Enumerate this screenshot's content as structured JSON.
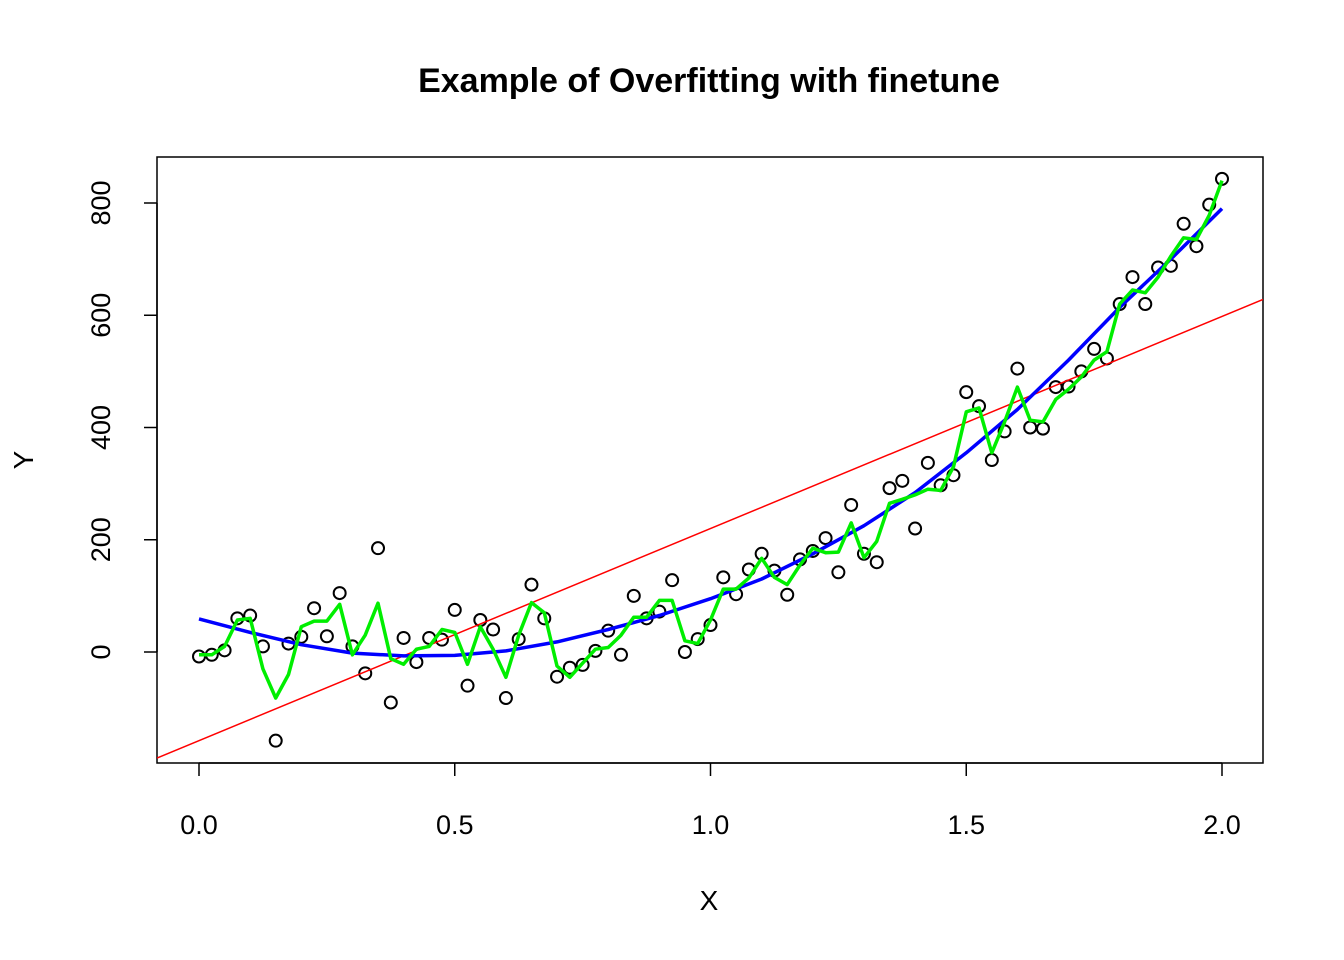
{
  "chart_data": {
    "type": "scatter",
    "title": "Example of Overfitting with finetune",
    "xlabel": "X",
    "ylabel": "Y",
    "xlim": [
      0,
      2
    ],
    "ylim": [
      -180,
      850
    ],
    "x_ticks": [
      "0.0",
      "0.5",
      "1.0",
      "1.5",
      "2.0"
    ],
    "y_ticks": [
      "0",
      "200",
      "400",
      "600",
      "800"
    ],
    "grid": false,
    "legend": "none",
    "colors": {
      "points": "#000000",
      "linear": "#ff0000",
      "polynomial": "#0000ff",
      "overfit": "#00ee00"
    },
    "points": {
      "x": [
        0.0,
        0.025,
        0.05,
        0.075,
        0.1,
        0.125,
        0.15,
        0.175,
        0.2,
        0.225,
        0.25,
        0.275,
        0.3,
        0.325,
        0.35,
        0.375,
        0.4,
        0.425,
        0.45,
        0.475,
        0.5,
        0.525,
        0.55,
        0.575,
        0.6,
        0.625,
        0.65,
        0.675,
        0.7,
        0.725,
        0.75,
        0.775,
        0.8,
        0.825,
        0.85,
        0.875,
        0.9,
        0.925,
        0.95,
        0.975,
        1.0,
        1.025,
        1.05,
        1.075,
        1.1,
        1.125,
        1.15,
        1.175,
        1.2,
        1.225,
        1.25,
        1.275,
        1.3,
        1.325,
        1.35,
        1.375,
        1.4,
        1.425,
        1.45,
        1.475,
        1.5,
        1.525,
        1.55,
        1.575,
        1.6,
        1.625,
        1.65,
        1.675,
        1.7,
        1.725,
        1.75,
        1.775,
        1.8,
        1.825,
        1.85,
        1.875,
        1.9,
        1.925,
        1.95,
        1.975,
        2.0
      ],
      "y": [
        -8,
        -5,
        3,
        60,
        65,
        10,
        -158,
        15,
        27,
        78,
        28,
        105,
        10,
        -38,
        185,
        -90,
        25,
        -18,
        25,
        22,
        75,
        -60,
        57,
        40,
        -82,
        23,
        120,
        60,
        -44,
        -28,
        -23,
        2,
        38,
        -5,
        100,
        60,
        72,
        128,
        0,
        23,
        48,
        133,
        103,
        147,
        175,
        145,
        102,
        165,
        180,
        203,
        142,
        262,
        175,
        160,
        292,
        305,
        220,
        337,
        297,
        315,
        463,
        438,
        342,
        393,
        505,
        400,
        398,
        472,
        473,
        500,
        540,
        523,
        620,
        668,
        620,
        685,
        688,
        763,
        723,
        797,
        843
      ]
    },
    "series": [
      {
        "x": [
          0.0,
          2.0
        ],
        "y": [
          -158,
          598
        ]
      },
      {
        "x": [
          0.0,
          0.1,
          0.2,
          0.3,
          0.4,
          0.5,
          0.6,
          0.7,
          0.8,
          0.9,
          1.0,
          1.1,
          1.2,
          1.3,
          1.4,
          1.5,
          1.6,
          1.7,
          1.8,
          1.9,
          2.0
        ],
        "y": [
          59,
          35,
          13,
          -2,
          -7,
          -6,
          2,
          18,
          40,
          65,
          95,
          130,
          175,
          225,
          284,
          355,
          432,
          520,
          614,
          700,
          790
        ]
      },
      {
        "x": [
          0.0,
          0.025,
          0.05,
          0.075,
          0.1,
          0.125,
          0.15,
          0.175,
          0.2,
          0.225,
          0.25,
          0.275,
          0.3,
          0.325,
          0.35,
          0.375,
          0.4,
          0.425,
          0.45,
          0.475,
          0.5,
          0.525,
          0.55,
          0.575,
          0.6,
          0.625,
          0.65,
          0.675,
          0.7,
          0.725,
          0.75,
          0.775,
          0.8,
          0.825,
          0.85,
          0.875,
          0.9,
          0.925,
          0.95,
          0.975,
          1.0,
          1.025,
          1.05,
          1.075,
          1.1,
          1.125,
          1.15,
          1.175,
          1.2,
          1.225,
          1.25,
          1.275,
          1.3,
          1.325,
          1.35,
          1.375,
          1.4,
          1.425,
          1.45,
          1.475,
          1.5,
          1.525,
          1.55,
          1.575,
          1.6,
          1.625,
          1.65,
          1.675,
          1.7,
          1.725,
          1.75,
          1.775,
          1.8,
          1.825,
          1.85,
          1.875,
          1.9,
          1.925,
          1.95,
          1.975,
          2.0
        ],
        "y": [
          -5,
          -5,
          10,
          57,
          60,
          -30,
          -82,
          -40,
          45,
          55,
          55,
          85,
          -5,
          30,
          87,
          -12,
          -22,
          5,
          10,
          40,
          35,
          -22,
          45,
          5,
          -45,
          30,
          88,
          70,
          -25,
          -45,
          -20,
          5,
          8,
          30,
          62,
          62,
          92,
          92,
          20,
          15,
          57,
          112,
          112,
          132,
          167,
          133,
          120,
          155,
          185,
          177,
          178,
          230,
          168,
          197,
          265,
          272,
          280,
          290,
          288,
          330,
          428,
          435,
          355,
          410,
          472,
          413,
          410,
          450,
          468,
          490,
          520,
          535,
          620,
          645,
          640,
          668,
          705,
          738,
          735,
          778,
          840
        ]
      }
    ]
  }
}
